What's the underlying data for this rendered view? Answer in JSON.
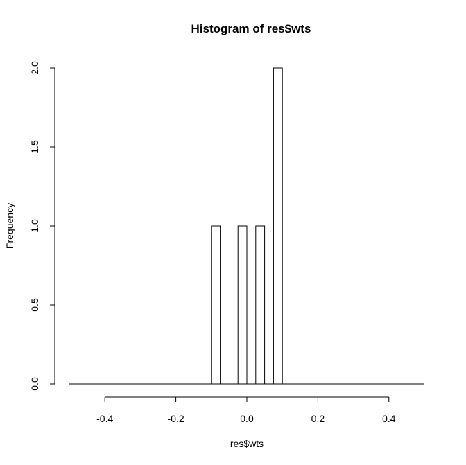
{
  "chart_data": {
    "type": "bar",
    "title": "Histogram of res$wts",
    "xlabel": "res$wts",
    "ylabel": "Frequency",
    "xlim": [
      -0.5,
      0.5
    ],
    "ylim": [
      0,
      2
    ],
    "x_ticks": [
      "-0.4",
      "-0.2",
      "0.0",
      "0.2",
      "0.4"
    ],
    "y_ticks": [
      "0.0",
      "0.5",
      "1.0",
      "1.5",
      "2.0"
    ],
    "bin_width": 0.025,
    "bins": [
      {
        "start": -0.5,
        "end": -0.1,
        "count": 0
      },
      {
        "start": -0.1,
        "end": -0.075,
        "count": 1
      },
      {
        "start": -0.075,
        "end": -0.025,
        "count": 0
      },
      {
        "start": -0.025,
        "end": 0.0,
        "count": 1
      },
      {
        "start": 0.0,
        "end": 0.025,
        "count": 0
      },
      {
        "start": 0.025,
        "end": 0.05,
        "count": 1
      },
      {
        "start": 0.05,
        "end": 0.075,
        "count": 0
      },
      {
        "start": 0.075,
        "end": 0.1,
        "count": 2
      },
      {
        "start": 0.1,
        "end": 0.5,
        "count": 0
      }
    ],
    "grid": false,
    "bar_fill": "#ffffff",
    "bar_stroke": "#000000"
  }
}
